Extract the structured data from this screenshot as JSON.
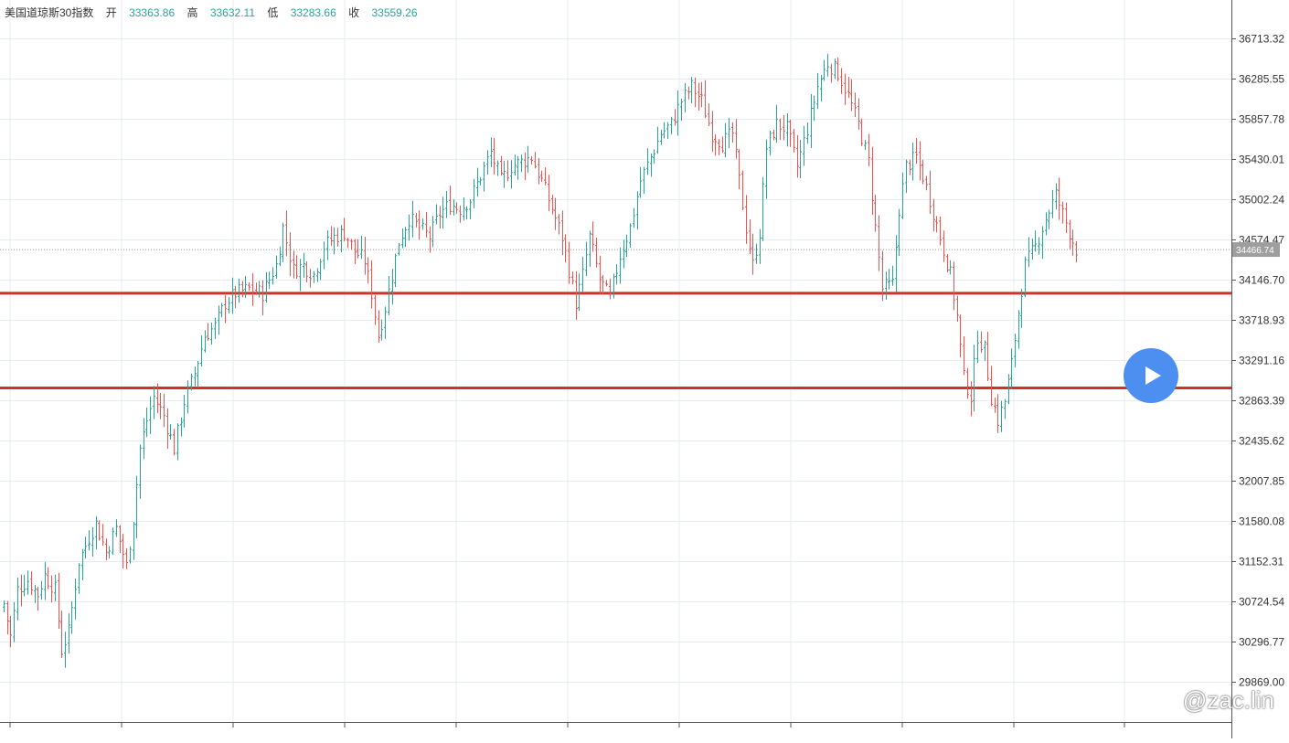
{
  "legend": {
    "name": "美国道琼斯30指数",
    "open_label": "开",
    "open": "33363.86",
    "high_label": "高",
    "high": "33632.11",
    "low_label": "低",
    "low": "33283.66",
    "close_label": "收",
    "close": "33559.26"
  },
  "watermark": "@zac.lin",
  "colors": {
    "up": "#26a69a",
    "down": "#ef5350",
    "support": "#d32f2f",
    "grid": "#e6ecef",
    "price_label_bg": "#9e9e9e"
  },
  "chart_data": {
    "type": "bar",
    "title": "",
    "xlabel": "",
    "ylabel": "",
    "ylim": [
      29700,
      36900
    ],
    "y_ticks": [
      29869.0,
      30296.77,
      30724.54,
      31152.31,
      31580.08,
      32007.85,
      32435.62,
      32863.39,
      33291.16,
      33718.93,
      34146.7,
      34574.47,
      35002.24,
      35430.01,
      35857.78,
      36285.55,
      36713.32
    ],
    "y_tick_labels": [
      "29869.00",
      "30296.77",
      "30724.54",
      "31152.31",
      "31580.08",
      "32007.85",
      "32435.62",
      "32863.39",
      "33291.16",
      "33718.93",
      "34146.70",
      "34574.47",
      "35002.24",
      "35430.01",
      "35857.78",
      "36285.55",
      "36713.32"
    ],
    "last_price": 34466.74,
    "last_price_label": "34466.74",
    "horizontal_lines": [
      34002,
      32995
    ],
    "anchors": [
      [
        0,
        30700
      ],
      [
        2,
        30350
      ],
      [
        4,
        30850
      ],
      [
        7,
        30950
      ],
      [
        10,
        30800
      ],
      [
        12,
        31000
      ],
      [
        15,
        30850
      ],
      [
        17,
        30200
      ],
      [
        19,
        30400
      ],
      [
        22,
        31150
      ],
      [
        25,
        31400
      ],
      [
        27,
        31550
      ],
      [
        30,
        31250
      ],
      [
        33,
        31500
      ],
      [
        36,
        31100
      ],
      [
        38,
        31600
      ],
      [
        40,
        32350
      ],
      [
        42,
        32650
      ],
      [
        44,
        32900
      ],
      [
        47,
        32700
      ],
      [
        50,
        32350
      ],
      [
        53,
        32850
      ],
      [
        56,
        33150
      ],
      [
        59,
        33550
      ],
      [
        62,
        33650
      ],
      [
        65,
        33900
      ],
      [
        68,
        34000
      ],
      [
        72,
        34050
      ],
      [
        76,
        34000
      ],
      [
        80,
        34300
      ],
      [
        82,
        34700
      ],
      [
        85,
        34250
      ],
      [
        88,
        34300
      ],
      [
        91,
        34200
      ],
      [
        94,
        34500
      ],
      [
        97,
        34600
      ],
      [
        100,
        34650
      ],
      [
        103,
        34450
      ],
      [
        106,
        34350
      ],
      [
        108,
        34000
      ],
      [
        110,
        33550
      ],
      [
        112,
        33850
      ],
      [
        114,
        34200
      ],
      [
        116,
        34550
      ],
      [
        119,
        34800
      ],
      [
        122,
        34700
      ],
      [
        125,
        34600
      ],
      [
        128,
        34850
      ],
      [
        131,
        34950
      ],
      [
        134,
        34900
      ],
      [
        137,
        35000
      ],
      [
        140,
        35250
      ],
      [
        143,
        35500
      ],
      [
        146,
        35200
      ],
      [
        149,
        35350
      ],
      [
        152,
        35400
      ],
      [
        155,
        35450
      ],
      [
        158,
        35200
      ],
      [
        161,
        34900
      ],
      [
        164,
        34600
      ],
      [
        166,
        34250
      ],
      [
        168,
        33900
      ],
      [
        170,
        34200
      ],
      [
        172,
        34600
      ],
      [
        175,
        34150
      ],
      [
        178,
        33950
      ],
      [
        181,
        34400
      ],
      [
        184,
        34700
      ],
      [
        187,
        35200
      ],
      [
        190,
        35450
      ],
      [
        193,
        35700
      ],
      [
        196,
        35800
      ],
      [
        199,
        36050
      ],
      [
        202,
        36200
      ],
      [
        205,
        36050
      ],
      [
        208,
        35700
      ],
      [
        211,
        35600
      ],
      [
        214,
        35700
      ],
      [
        216,
        35200
      ],
      [
        218,
        34700
      ],
      [
        220,
        34300
      ],
      [
        222,
        34650
      ],
      [
        224,
        35550
      ],
      [
        227,
        35800
      ],
      [
        230,
        35750
      ],
      [
        233,
        35350
      ],
      [
        236,
        35750
      ],
      [
        239,
        36200
      ],
      [
        242,
        36450
      ],
      [
        245,
        36350
      ],
      [
        248,
        36100
      ],
      [
        251,
        35800
      ],
      [
        254,
        35400
      ],
      [
        256,
        34700
      ],
      [
        258,
        34050
      ],
      [
        261,
        34100
      ],
      [
        263,
        34900
      ],
      [
        265,
        35350
      ],
      [
        268,
        35450
      ],
      [
        270,
        35250
      ],
      [
        272,
        35000
      ],
      [
        275,
        34600
      ],
      [
        278,
        34200
      ],
      [
        280,
        33750
      ],
      [
        282,
        33100
      ],
      [
        284,
        32900
      ],
      [
        286,
        33550
      ],
      [
        288,
        33400
      ],
      [
        290,
        32900
      ],
      [
        292,
        32650
      ],
      [
        294,
        32850
      ],
      [
        296,
        33250
      ],
      [
        298,
        33800
      ],
      [
        300,
        34300
      ],
      [
        303,
        34500
      ],
      [
        306,
        34800
      ],
      [
        309,
        35050
      ],
      [
        311,
        34850
      ],
      [
        313,
        34650
      ],
      [
        315,
        34470
      ]
    ]
  }
}
